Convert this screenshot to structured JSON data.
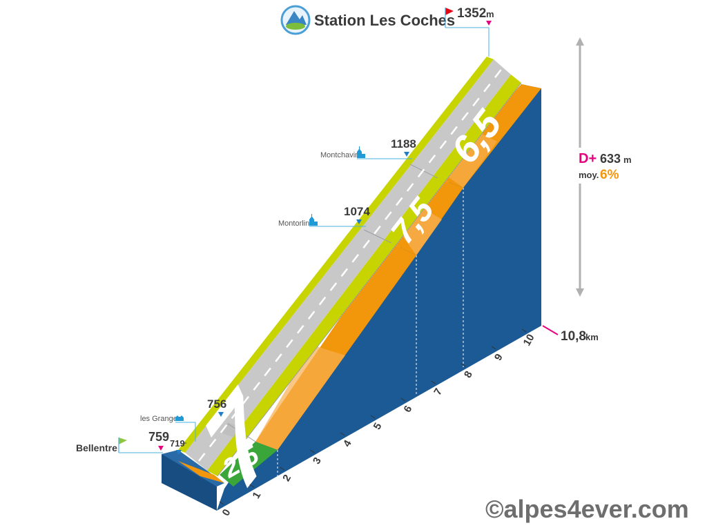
{
  "summit": {
    "name": "Station Les Coches",
    "elevation": "1352",
    "unit": "m"
  },
  "start": {
    "name": "Bellentre",
    "elevation": "759"
  },
  "waypoints": [
    {
      "name": "Montchavin",
      "elevation": "1188"
    },
    {
      "name": "Montorlin",
      "elevation": "1074"
    },
    {
      "name": "les Granges",
      "elevation": ""
    },
    {
      "name": "",
      "elevation": "756"
    },
    {
      "name": "",
      "elevation": "719"
    }
  ],
  "stats": {
    "gain_label": "D+",
    "gain": "633",
    "gain_unit": "m",
    "avg_label": "moy.",
    "avg": "6%"
  },
  "distance": {
    "total": "10,8",
    "unit": "km"
  },
  "km_ticks": [
    "0",
    "1",
    "2",
    "3",
    "4",
    "5",
    "6",
    "7",
    "8",
    "9",
    "10"
  ],
  "segments": [
    {
      "gradient": "2,5",
      "from_km": 0.8,
      "to_km": 2,
      "color": "#3aa63a"
    },
    {
      "gradient": "7",
      "from_km": 2,
      "to_km": 6,
      "color": "#f2960c"
    },
    {
      "gradient": "7,5",
      "from_km": 6,
      "to_km": 8,
      "color": "#f2960c"
    },
    {
      "gradient": "6,5",
      "from_km": 8,
      "to_km": 10.8,
      "color": "#f2960c"
    }
  ],
  "colors": {
    "side": "#1b5a94",
    "road": "#c8c8c8",
    "verge": "#c8d400",
    "accent": "#e6007e",
    "orange": "#f2960c",
    "green": "#3aa63a"
  },
  "watermark": "©alpes4ever.com"
}
